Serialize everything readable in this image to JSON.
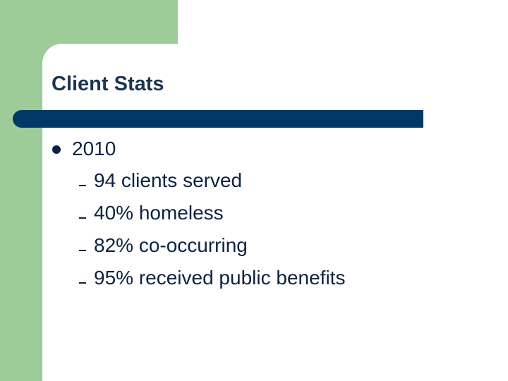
{
  "title": "Client Stats",
  "bullets": [
    {
      "text": "2010",
      "items": [
        "94 clients served",
        "40% homeless",
        "82% co-occurring",
        "95% received public benefits"
      ]
    }
  ]
}
